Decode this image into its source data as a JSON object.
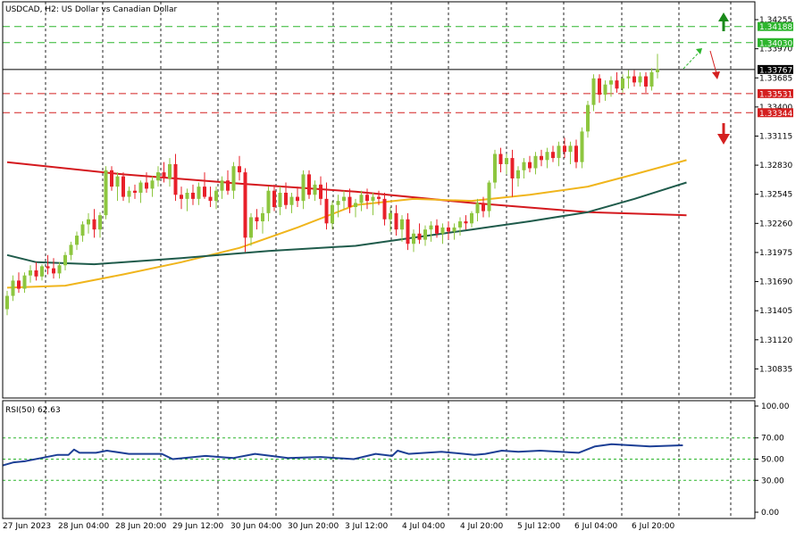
{
  "header": {
    "title": "USDCAD, H2:  US Dollar vs Canadian Dollar"
  },
  "rsi_panel": {
    "label": "RSI(50) 62.63"
  },
  "colors": {
    "bull": "#8dc63f",
    "bear": "#e8202a",
    "ma_red": "#d4191e",
    "ma_gold": "#f0b51c",
    "ma_green": "#1f5b4b",
    "rsi": "#1c3f95",
    "green_level": "#2db52d",
    "red_level": "#d42020",
    "grid": "#000000",
    "current": "#000000"
  },
  "chart_data": [
    {
      "type": "candlestick",
      "symbol": "USDCAD",
      "timeframe": "H2",
      "y_ticks": [
        "1.34255",
        "1.33970",
        "1.33685",
        "1.33400",
        "1.33115",
        "1.32830",
        "1.32545",
        "1.32260",
        "1.31975",
        "1.31690",
        "1.31405",
        "1.31120",
        "1.30835"
      ],
      "ylim": [
        1.3055,
        1.3443
      ],
      "x_tick_labels": [
        "27 Jun 2023",
        "28 Jun 04:00",
        "28 Jun 20:00",
        "29 Jun 12:00",
        "30 Jun 04:00",
        "30 Jun 20:00",
        "3 Jul 12:00",
        "4 Jul 04:00",
        "4 Jul 20:00",
        "5 Jul 12:00",
        "6 Jul 04:00",
        "6 Jul 20:00"
      ],
      "current_price": "1.33767",
      "levels": [
        {
          "price": "1.34188",
          "color": "#2db52d",
          "style": "dashed"
        },
        {
          "price": "1.34030",
          "color": "#2db52d",
          "style": "dashed"
        },
        {
          "price": "1.33531",
          "color": "#d42020",
          "style": "dashed"
        },
        {
          "price": "1.33344",
          "color": "#d42020",
          "style": "dashed"
        }
      ],
      "candles": [
        [
          1.3142,
          1.316,
          1.3136,
          1.3155
        ],
        [
          1.3155,
          1.3175,
          1.315,
          1.317
        ],
        [
          1.317,
          1.3178,
          1.3158,
          1.3162
        ],
        [
          1.3162,
          1.3178,
          1.3158,
          1.3175
        ],
        [
          1.3175,
          1.3185,
          1.3168,
          1.318
        ],
        [
          1.318,
          1.3188,
          1.317,
          1.3174
        ],
        [
          1.3174,
          1.3186,
          1.317,
          1.3184
        ],
        [
          1.3184,
          1.3195,
          1.3176,
          1.3182
        ],
        [
          1.3182,
          1.3192,
          1.3172,
          1.3177
        ],
        [
          1.3177,
          1.3188,
          1.3172,
          1.3185
        ],
        [
          1.3185,
          1.3198,
          1.318,
          1.3195
        ],
        [
          1.3195,
          1.3208,
          1.319,
          1.3205
        ],
        [
          1.3205,
          1.3218,
          1.32,
          1.3214
        ],
        [
          1.3214,
          1.3228,
          1.3208,
          1.3225
        ],
        [
          1.3225,
          1.3236,
          1.3216,
          1.323
        ],
        [
          1.323,
          1.324,
          1.3212,
          1.322
        ],
        [
          1.322,
          1.3237,
          1.3212,
          1.3234
        ],
        [
          1.3234,
          1.3282,
          1.323,
          1.3278
        ],
        [
          1.3278,
          1.3282,
          1.3258,
          1.3262
        ],
        [
          1.3262,
          1.3276,
          1.3248,
          1.3272
        ],
        [
          1.3272,
          1.3276,
          1.3248,
          1.3252
        ],
        [
          1.3252,
          1.3262,
          1.3246,
          1.3258
        ],
        [
          1.3258,
          1.3264,
          1.325,
          1.3256
        ],
        [
          1.3256,
          1.3268,
          1.3246,
          1.3266
        ],
        [
          1.3266,
          1.3276,
          1.3256,
          1.326
        ],
        [
          1.326,
          1.3272,
          1.3252,
          1.3268
        ],
        [
          1.3268,
          1.3282,
          1.3262,
          1.3276
        ],
        [
          1.3276,
          1.3286,
          1.3266,
          1.327
        ],
        [
          1.327,
          1.329,
          1.3262,
          1.3284
        ],
        [
          1.3284,
          1.3294,
          1.3248,
          1.3254
        ],
        [
          1.3254,
          1.3262,
          1.324,
          1.325
        ],
        [
          1.325,
          1.326,
          1.3238,
          1.3256
        ],
        [
          1.3256,
          1.3264,
          1.3244,
          1.325
        ],
        [
          1.325,
          1.3266,
          1.3244,
          1.3262
        ],
        [
          1.3262,
          1.3276,
          1.325,
          1.3252
        ],
        [
          1.3252,
          1.3262,
          1.3242,
          1.3248
        ],
        [
          1.3248,
          1.3262,
          1.324,
          1.3258
        ],
        [
          1.3258,
          1.3272,
          1.325,
          1.3268
        ],
        [
          1.3268,
          1.3278,
          1.3254,
          1.3258
        ],
        [
          1.3258,
          1.3286,
          1.325,
          1.3282
        ],
        [
          1.3282,
          1.3292,
          1.3268,
          1.3276
        ],
        [
          1.3276,
          1.328,
          1.3198,
          1.3212
        ],
        [
          1.3212,
          1.3236,
          1.3204,
          1.3232
        ],
        [
          1.3232,
          1.324,
          1.322,
          1.3228
        ],
        [
          1.3228,
          1.3242,
          1.3216,
          1.3236
        ],
        [
          1.3236,
          1.3262,
          1.3228,
          1.3258
        ],
        [
          1.3258,
          1.3264,
          1.3238,
          1.3242
        ],
        [
          1.3242,
          1.3262,
          1.3234,
          1.3256
        ],
        [
          1.3256,
          1.3266,
          1.324,
          1.3244
        ],
        [
          1.3244,
          1.3256,
          1.3236,
          1.3252
        ],
        [
          1.3252,
          1.3262,
          1.3242,
          1.3248
        ],
        [
          1.3248,
          1.3278,
          1.324,
          1.3274
        ],
        [
          1.3274,
          1.3278,
          1.325,
          1.3254
        ],
        [
          1.3254,
          1.3268,
          1.3248,
          1.3264
        ],
        [
          1.3264,
          1.3272,
          1.3244,
          1.325
        ],
        [
          1.325,
          1.3266,
          1.322,
          1.3226
        ],
        [
          1.3226,
          1.3248,
          1.322,
          1.3244
        ],
        [
          1.3244,
          1.3254,
          1.3232,
          1.3248
        ],
        [
          1.3248,
          1.3258,
          1.324,
          1.3252
        ],
        [
          1.3252,
          1.326,
          1.3236,
          1.3242
        ],
        [
          1.3242,
          1.325,
          1.3232,
          1.3246
        ],
        [
          1.3246,
          1.3258,
          1.3238,
          1.3254
        ],
        [
          1.3254,
          1.326,
          1.324,
          1.3248
        ],
        [
          1.3248,
          1.3256,
          1.3234,
          1.3252
        ],
        [
          1.3252,
          1.3258,
          1.3244,
          1.325
        ],
        [
          1.325,
          1.3256,
          1.3224,
          1.323
        ],
        [
          1.323,
          1.3242,
          1.3218,
          1.3236
        ],
        [
          1.3236,
          1.3244,
          1.3214,
          1.322
        ],
        [
          1.322,
          1.3234,
          1.3208,
          1.323
        ],
        [
          1.323,
          1.3236,
          1.32,
          1.3206
        ],
        [
          1.3206,
          1.322,
          1.3198,
          1.3216
        ],
        [
          1.3216,
          1.3226,
          1.3206,
          1.321
        ],
        [
          1.321,
          1.3224,
          1.3204,
          1.322
        ],
        [
          1.322,
          1.3228,
          1.3208,
          1.3224
        ],
        [
          1.3224,
          1.323,
          1.3212,
          1.3216
        ],
        [
          1.3216,
          1.3226,
          1.3206,
          1.3222
        ],
        [
          1.3222,
          1.3228,
          1.321,
          1.3218
        ],
        [
          1.3218,
          1.3226,
          1.321,
          1.3222
        ],
        [
          1.3222,
          1.3232,
          1.3214,
          1.3228
        ],
        [
          1.3228,
          1.3234,
          1.322,
          1.3226
        ],
        [
          1.3226,
          1.3238,
          1.3222,
          1.3236
        ],
        [
          1.3236,
          1.325,
          1.3228,
          1.3246
        ],
        [
          1.3246,
          1.3252,
          1.3232,
          1.3238
        ],
        [
          1.3238,
          1.3268,
          1.3232,
          1.3266
        ],
        [
          1.3266,
          1.3298,
          1.326,
          1.3294
        ],
        [
          1.3294,
          1.33,
          1.3276,
          1.3284
        ],
        [
          1.3284,
          1.3294,
          1.3274,
          1.329
        ],
        [
          1.329,
          1.3298,
          1.3252,
          1.327
        ],
        [
          1.327,
          1.3282,
          1.3262,
          1.3278
        ],
        [
          1.3278,
          1.329,
          1.327,
          1.3286
        ],
        [
          1.3286,
          1.3292,
          1.3276,
          1.328
        ],
        [
          1.328,
          1.3296,
          1.3274,
          1.3292
        ],
        [
          1.3292,
          1.3298,
          1.3282,
          1.3288
        ],
        [
          1.3288,
          1.33,
          1.328,
          1.3296
        ],
        [
          1.3296,
          1.3302,
          1.3286,
          1.329
        ],
        [
          1.329,
          1.3306,
          1.3282,
          1.3302
        ],
        [
          1.3302,
          1.331,
          1.329,
          1.3296
        ],
        [
          1.3296,
          1.3306,
          1.3284,
          1.3302
        ],
        [
          1.3302,
          1.3308,
          1.328,
          1.3286
        ],
        [
          1.3286,
          1.332,
          1.328,
          1.3316
        ],
        [
          1.3316,
          1.3346,
          1.331,
          1.3342
        ],
        [
          1.3342,
          1.3372,
          1.3336,
          1.3368
        ],
        [
          1.3368,
          1.3372,
          1.3344,
          1.3352
        ],
        [
          1.3352,
          1.3366,
          1.3346,
          1.3362
        ],
        [
          1.3362,
          1.337,
          1.335,
          1.3366
        ],
        [
          1.3366,
          1.3374,
          1.3354,
          1.3358
        ],
        [
          1.3358,
          1.3372,
          1.3354,
          1.3368
        ],
        [
          1.3368,
          1.3376,
          1.3358,
          1.337
        ],
        [
          1.337,
          1.3376,
          1.336,
          1.3364
        ],
        [
          1.3364,
          1.3374,
          1.336,
          1.337
        ],
        [
          1.337,
          1.3374,
          1.3354,
          1.336
        ],
        [
          1.336,
          1.3378,
          1.3356,
          1.3374
        ],
        [
          1.3374,
          1.3392,
          1.3368,
          1.3377
        ]
      ],
      "moving_averages": [
        {
          "color": "#d4191e",
          "points": [
            [
              0,
              1.3286
            ],
            [
              20,
              1.3274
            ],
            [
              40,
              1.3265
            ],
            [
              60,
              1.3257
            ],
            [
              80,
              1.3246
            ],
            [
              100,
              1.3237
            ],
            [
              117,
              1.3234
            ]
          ]
        },
        {
          "color": "#f0b51c",
          "points": [
            [
              0,
              1.3163
            ],
            [
              10,
              1.3165
            ],
            [
              20,
              1.3176
            ],
            [
              30,
              1.3188
            ],
            [
              40,
              1.3202
            ],
            [
              50,
              1.3222
            ],
            [
              60,
              1.3244
            ],
            [
              70,
              1.325
            ],
            [
              80,
              1.3248
            ],
            [
              90,
              1.3254
            ],
            [
              100,
              1.3262
            ],
            [
              108,
              1.3274
            ],
            [
              117,
              1.3288
            ]
          ]
        },
        {
          "color": "#1f5b4b",
          "points": [
            [
              0,
              1.3195
            ],
            [
              5,
              1.3188
            ],
            [
              15,
              1.3186
            ],
            [
              30,
              1.3192
            ],
            [
              45,
              1.3199
            ],
            [
              60,
              1.3204
            ],
            [
              70,
              1.3212
            ],
            [
              80,
              1.322
            ],
            [
              90,
              1.3228
            ],
            [
              100,
              1.3237
            ],
            [
              108,
              1.325
            ],
            [
              117,
              1.3266
            ]
          ]
        }
      ]
    },
    {
      "type": "line",
      "indicator": "RSI(50)",
      "ylim": [
        0,
        100
      ],
      "y_ticks": [
        "100.00",
        "70.00",
        "50.00",
        "30.00",
        "0.00"
      ],
      "levels": [
        70,
        50,
        30
      ],
      "series": [
        {
          "values": [
            [
              0,
              44
            ],
            [
              4,
              47
            ],
            [
              8,
              48
            ],
            [
              14,
              51
            ],
            [
              20,
              54
            ],
            [
              24,
              54
            ],
            [
              26,
              59
            ],
            [
              28,
              56
            ],
            [
              34,
              56
            ],
            [
              38,
              58
            ],
            [
              46,
              55
            ],
            [
              58,
              55
            ],
            [
              62,
              50
            ],
            [
              74,
              53
            ],
            [
              84,
              51
            ],
            [
              92,
              55
            ],
            [
              104,
              51
            ],
            [
              116,
              52
            ],
            [
              128,
              50
            ],
            [
              136,
              55
            ],
            [
              142,
              53
            ],
            [
              144,
              58
            ],
            [
              148,
              55
            ],
            [
              160,
              57
            ],
            [
              172,
              54
            ],
            [
              176,
              55
            ],
            [
              182,
              58
            ],
            [
              188,
              57
            ],
            [
              196,
              58
            ],
            [
              210,
              56
            ],
            [
              216,
              62
            ],
            [
              222,
              64
            ],
            [
              236,
              62
            ],
            [
              248,
              63
            ]
          ]
        }
      ]
    }
  ]
}
